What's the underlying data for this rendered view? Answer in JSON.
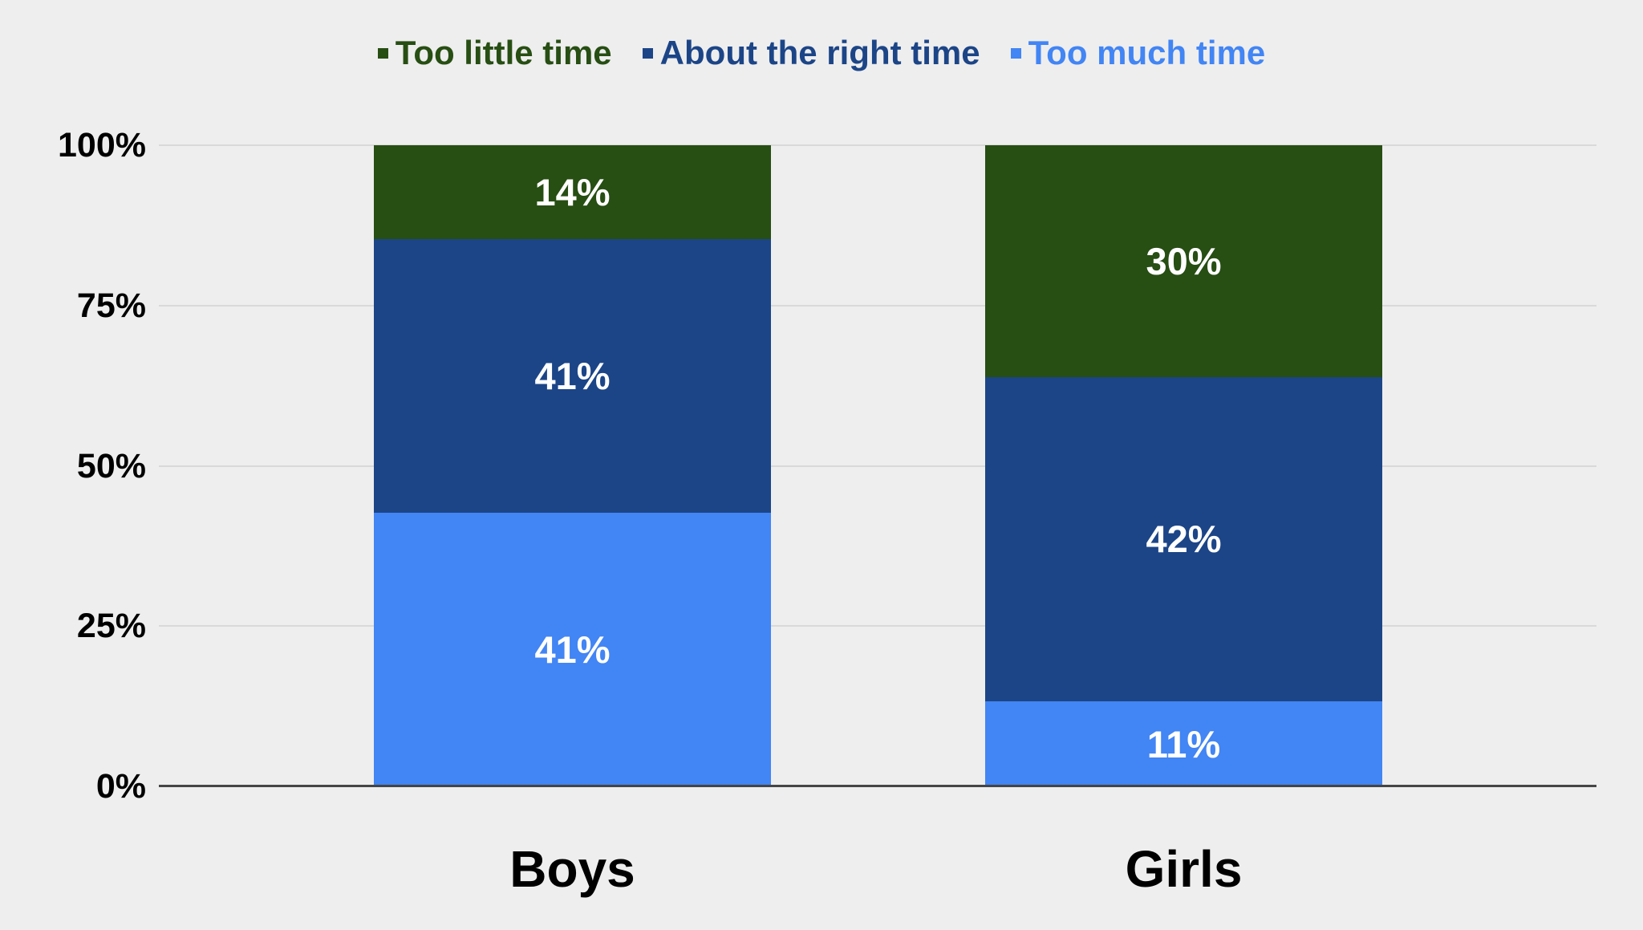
{
  "background_color": "#eeeeee",
  "legend": {
    "items": [
      {
        "label": "Too little time",
        "color": "#274e13"
      },
      {
        "label": "About the right time",
        "color": "#1c4587"
      },
      {
        "label": "Too much time",
        "color": "#4285f4"
      }
    ]
  },
  "chart_data": {
    "type": "bar",
    "variant": "100%-stacked-column",
    "categories": [
      "Boys",
      "Girls"
    ],
    "series": [
      {
        "name": "Too little time",
        "color": "#274e13",
        "values": [
          14,
          30
        ]
      },
      {
        "name": "About the right time",
        "color": "#1c4587",
        "values": [
          41,
          42
        ]
      },
      {
        "name": "Too much time",
        "color": "#4285f4",
        "values": [
          41,
          11
        ]
      }
    ],
    "stack_order_top_to_bottom": [
      "Too little time",
      "About the right time",
      "Too much time"
    ],
    "data_label_suffix": "%",
    "data_label_color": "#ffffff",
    "yticks": [
      "0%",
      "25%",
      "50%",
      "75%",
      "100%"
    ],
    "ylim": [
      0,
      100
    ],
    "grid": true,
    "gridline_color": "#d9d9d9",
    "axis_line_color": "#454545",
    "axis_text_color": "#000000",
    "legend_position": "top"
  }
}
